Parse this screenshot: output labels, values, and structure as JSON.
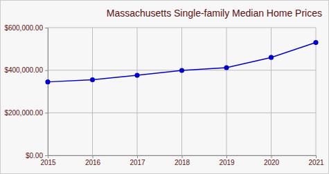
{
  "chart_data": {
    "type": "line",
    "title": "Massachusetts Single-family Median Home Prices",
    "x": [
      2015,
      2016,
      2017,
      2018,
      2019,
      2020,
      2021
    ],
    "values": [
      345000,
      355000,
      376000,
      399000,
      412000,
      460000,
      530000
    ],
    "color": "#0000cc",
    "marker": "circle",
    "xlim": [
      2015,
      2021
    ],
    "xticks": [
      2015,
      2016,
      2017,
      2018,
      2019,
      2020,
      2021
    ],
    "ylim": [
      0,
      600000
    ],
    "yticks": [
      {
        "value": 0,
        "label": "$0.00"
      },
      {
        "value": 200000,
        "label": "$200,000.00"
      },
      {
        "value": 400000,
        "label": "$400,000.00"
      },
      {
        "value": 600000,
        "label": "$600,000.00"
      }
    ],
    "grid": true
  }
}
